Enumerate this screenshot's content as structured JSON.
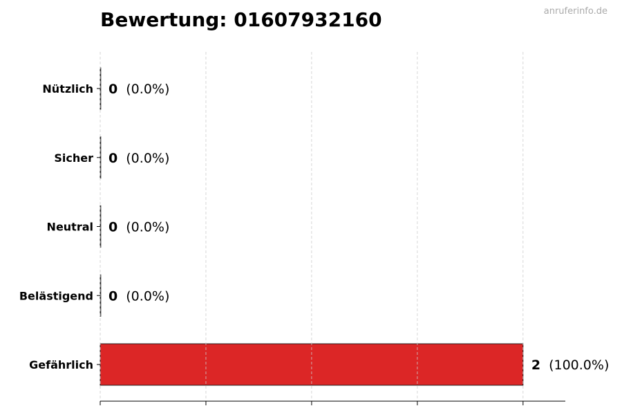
{
  "chart_data": {
    "type": "bar",
    "orientation": "horizontal",
    "title": "Bewertung: 01607932160",
    "categories": [
      "Nützlich",
      "Sicher",
      "Neutral",
      "Belästigend",
      "Gefährlich"
    ],
    "values": [
      0,
      0,
      0,
      0,
      2
    ],
    "value_labels": [
      "(0.0%)",
      "(0.0%)",
      "(0.0%)",
      "(0.0%)",
      "(100.0%)"
    ],
    "bar_color": "#dc2626",
    "xlim": [
      0,
      2.2
    ],
    "xticks": [
      0,
      0.5,
      1,
      1.5,
      2
    ],
    "xtick_labels_shown": false,
    "grid": "x-dashed",
    "xlabel": "",
    "ylabel": ""
  },
  "watermark": "anruferinfo.de"
}
